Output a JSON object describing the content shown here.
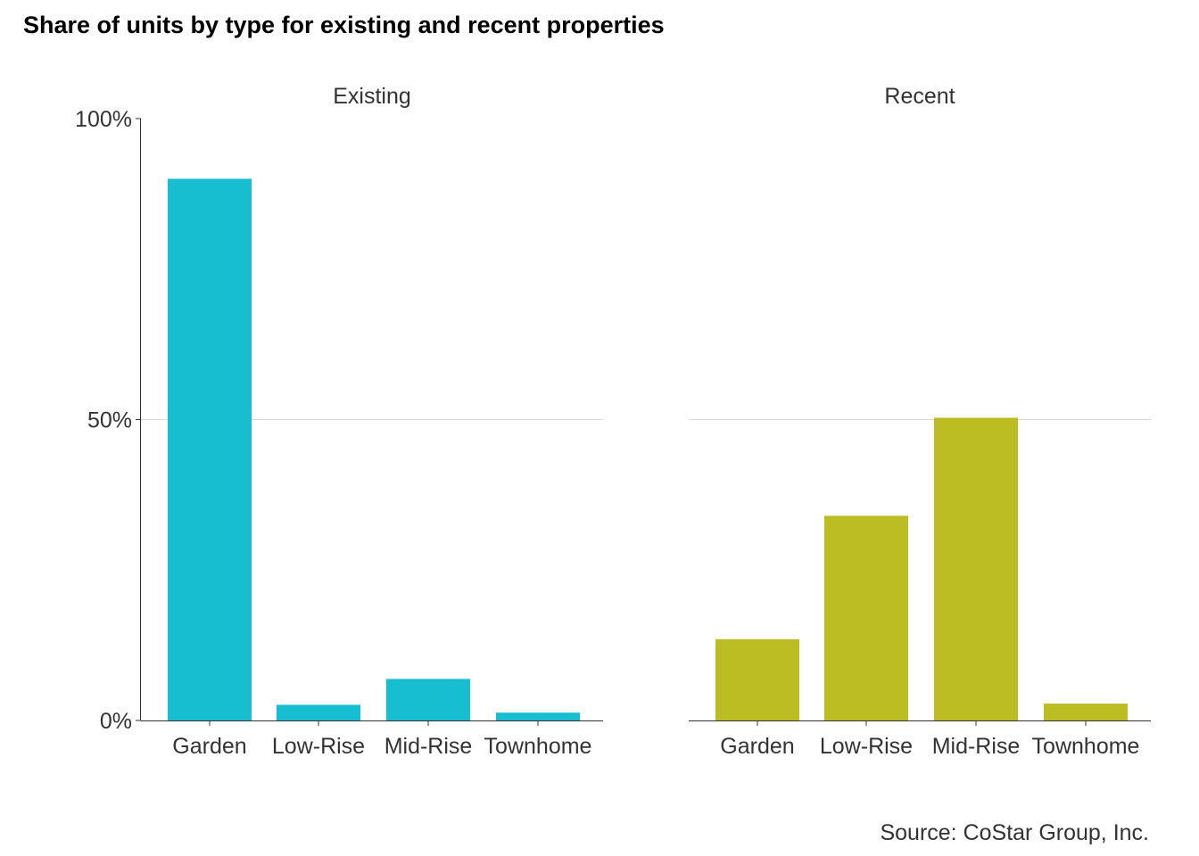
{
  "title": "Share of units by type for existing and recent properties",
  "source": "Source: CoStar Group, Inc.",
  "colors": {
    "existing": "#17becf",
    "recent": "#bcbd22",
    "gridline": "#d9d9d9",
    "axis": "#333333"
  },
  "chart_data": {
    "type": "bar",
    "title": "Share of units by type for existing and recent properties",
    "xlabel": "",
    "ylabel": "",
    "ylim": [
      0,
      100
    ],
    "yticks": [
      0,
      50,
      100
    ],
    "ytick_labels": [
      "0%",
      "50%",
      "100%"
    ],
    "grid": "horizontal major at 50%",
    "legend": "none",
    "categories": [
      "Garden",
      "Low-Rise",
      "Mid-Rise",
      "Townhome"
    ],
    "facets": [
      {
        "label": "Existing",
        "color": "#17becf",
        "values": [
          90,
          2.6,
          6.9,
          1.3
        ]
      },
      {
        "label": "Recent",
        "color": "#bcbd22",
        "values": [
          13.5,
          34,
          50.3,
          2.8
        ]
      }
    ]
  }
}
